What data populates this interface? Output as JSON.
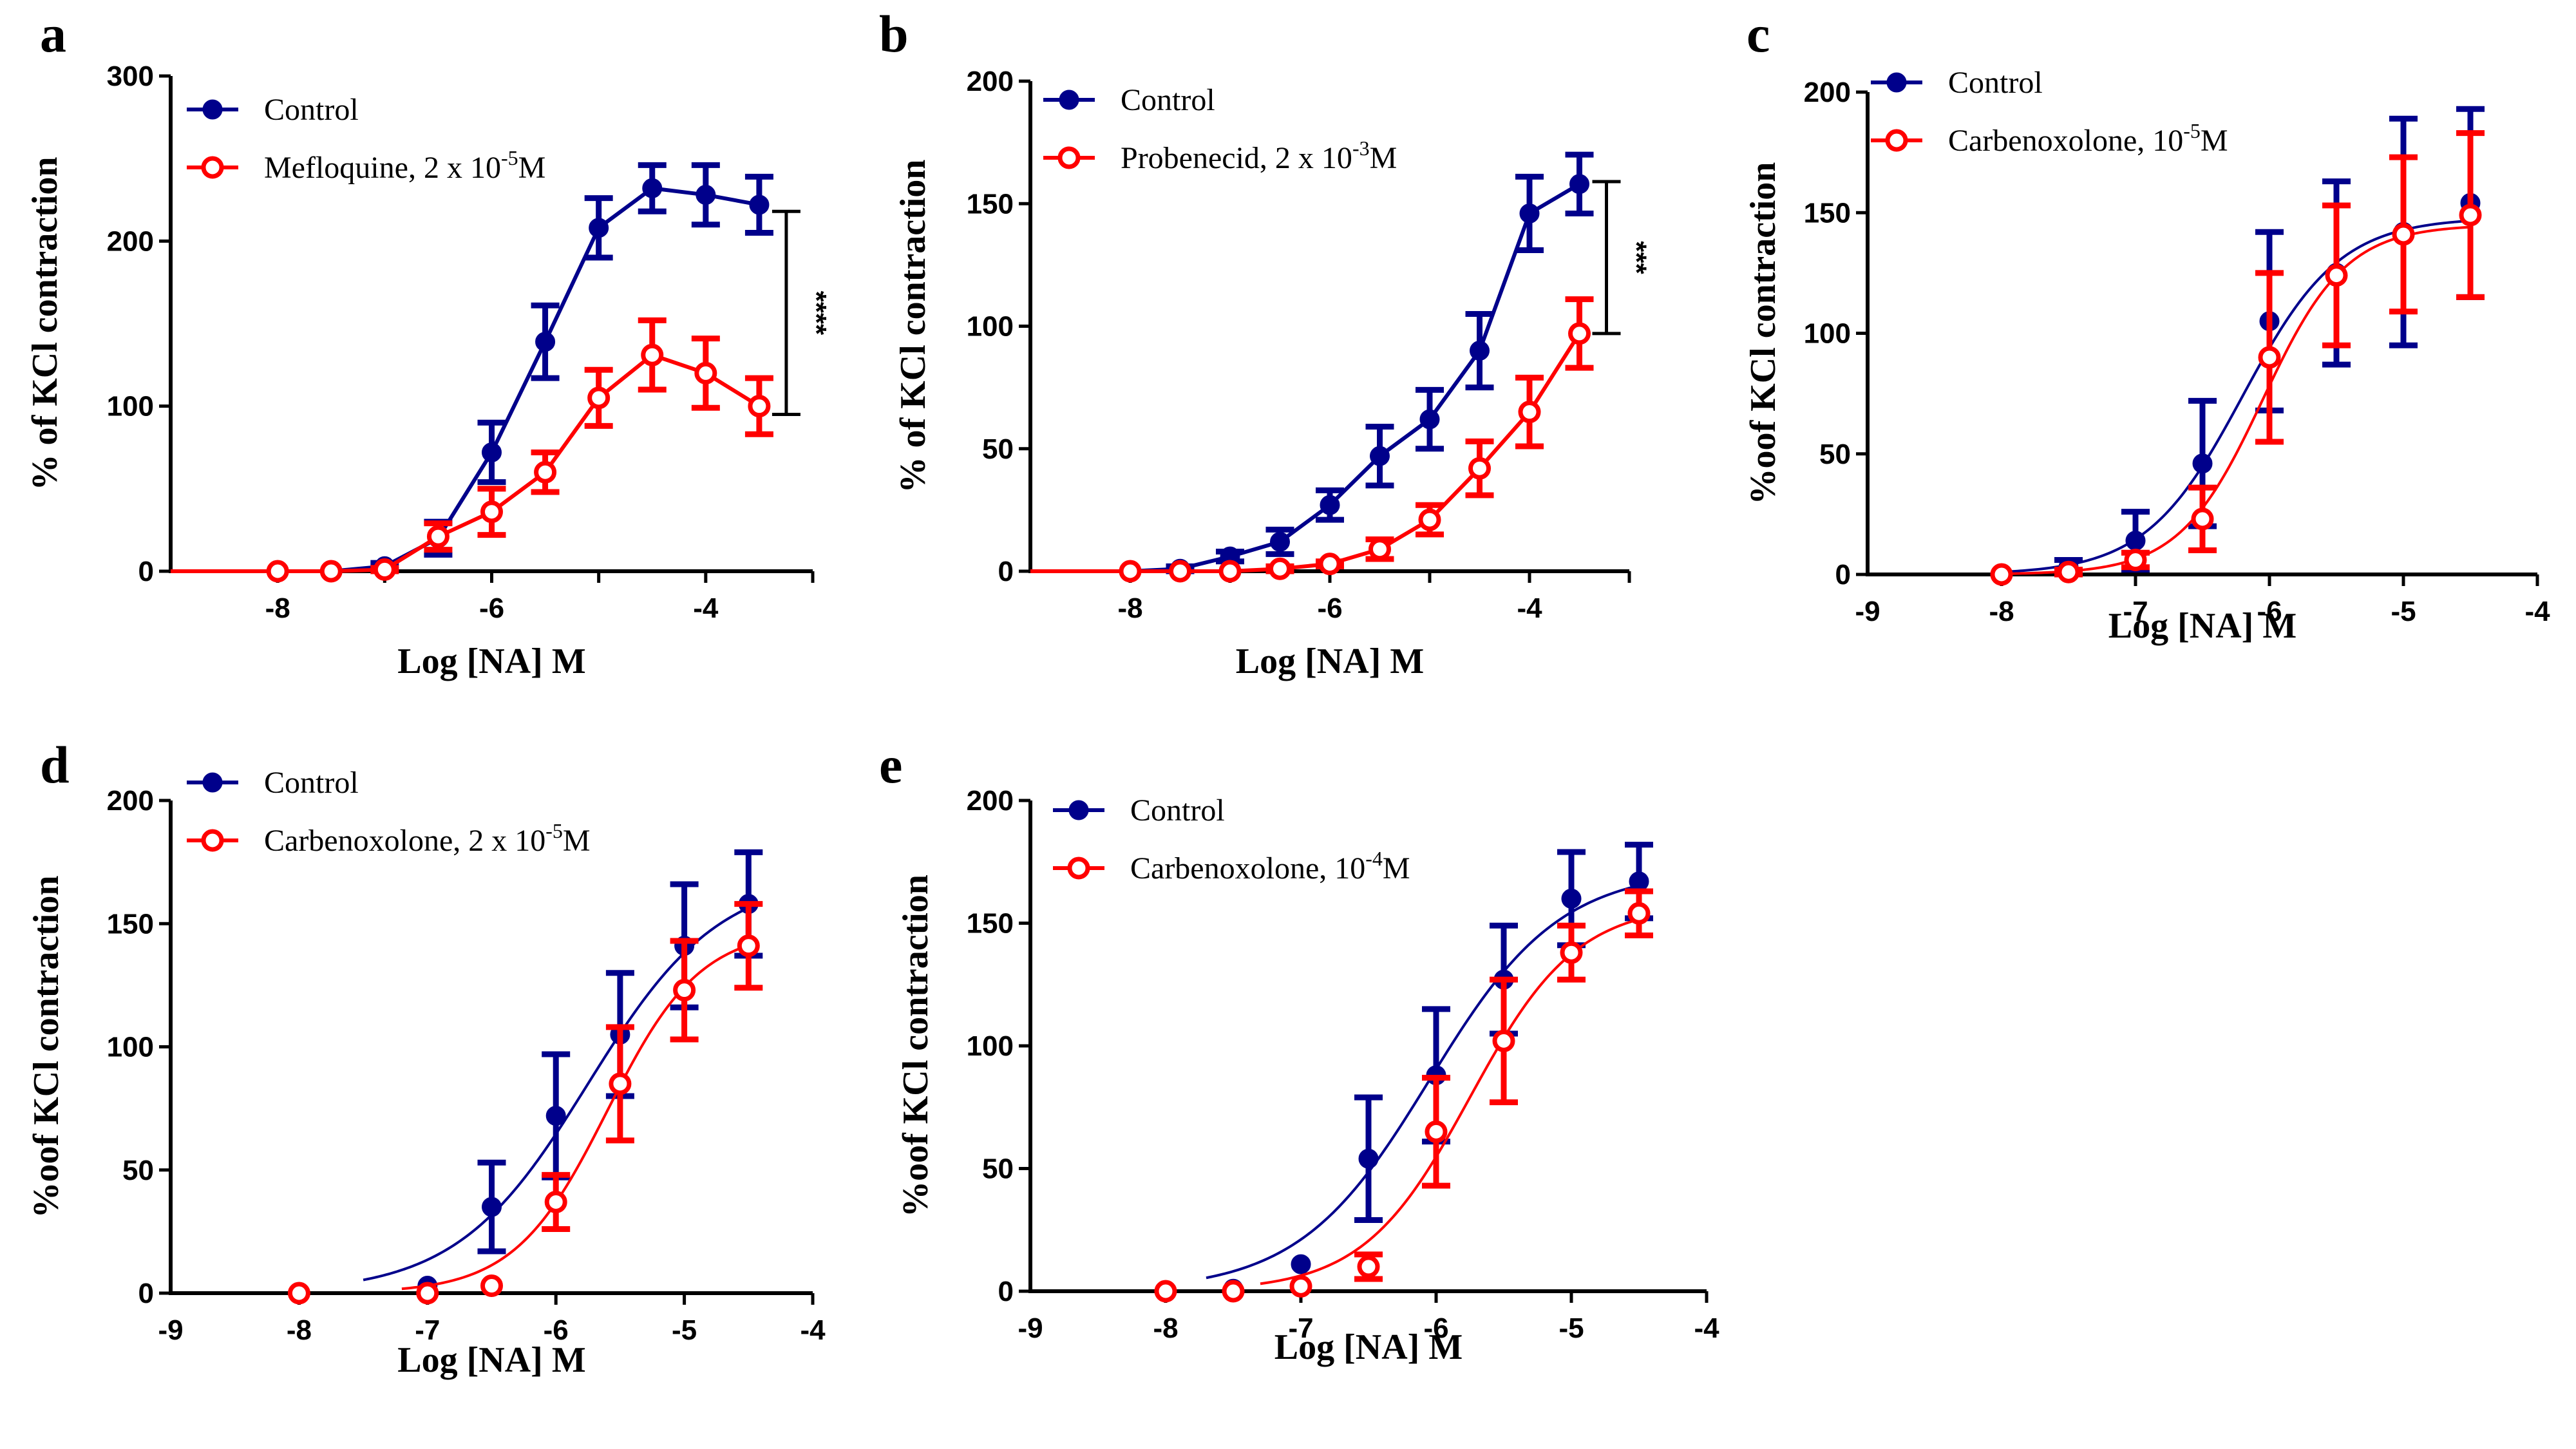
{
  "figure": {
    "colors": {
      "control": "#00008B",
      "treatment": "#FF0000",
      "axis": "#000000"
    }
  },
  "chart_data": [
    {
      "panel": "a",
      "type": "line",
      "title": "",
      "xlabel": "Log [NA] M",
      "ylabel": "% of KCl contraction",
      "xlim": [
        -9,
        -3
      ],
      "ylim": [
        0,
        300
      ],
      "xticks": [
        -9,
        -8,
        -7,
        -6,
        -5,
        -4,
        -3
      ],
      "xtick_labels": [
        "",
        "-8",
        "",
        "-6",
        "",
        "-4",
        ""
      ],
      "yticks": [
        0,
        100,
        200,
        300
      ],
      "ytick_labels": [
        "0",
        "100",
        "200",
        "300"
      ],
      "legend": "top-left",
      "fit": "connected",
      "significance": {
        "label": "****",
        "x": -3.5,
        "y_low": 95,
        "y_high": 218
      },
      "series": [
        {
          "name": "Control",
          "marker": "filled-circle",
          "color": "#00008B",
          "x": [
            -8,
            -7.5,
            -7,
            -6.5,
            -6,
            -5.5,
            -5,
            -4.5,
            -4,
            -3.5
          ],
          "y": [
            0,
            0,
            3,
            20,
            72,
            139,
            208,
            232,
            228,
            222
          ],
          "err": [
            0,
            0,
            2,
            10,
            18,
            22,
            18,
            14,
            18,
            17
          ]
        },
        {
          "name": "Mefloquine, 2 x 10^-5M",
          "marker": "open-circle",
          "color": "#FF0000",
          "x": [
            -8,
            -7.5,
            -7,
            -6.5,
            -6,
            -5.5,
            -5,
            -4.5,
            -4,
            -3.5
          ],
          "y": [
            0,
            0,
            1,
            21,
            36,
            60,
            105,
            131,
            120,
            100
          ],
          "err": [
            0,
            0,
            1,
            8,
            14,
            12,
            17,
            21,
            21,
            17
          ]
        }
      ]
    },
    {
      "panel": "b",
      "type": "line",
      "title": "",
      "xlabel": "Log [NA] M",
      "ylabel": "% of KCl contraction",
      "xlim": [
        -9,
        -3
      ],
      "ylim": [
        0,
        200
      ],
      "xticks": [
        -9,
        -8,
        -7,
        -6,
        -5,
        -4,
        -3
      ],
      "xtick_labels": [
        "",
        "-8",
        "",
        "-6",
        "",
        "-4",
        ""
      ],
      "yticks": [
        0,
        50,
        100,
        150,
        200
      ],
      "ytick_labels": [
        "0",
        "50",
        "100",
        "150",
        "200"
      ],
      "legend": "top-left",
      "fit": "connected",
      "significance": {
        "label": "***",
        "x": -3.5,
        "y_low": 97,
        "y_high": 159
      },
      "series": [
        {
          "name": "Control",
          "marker": "filled-circle",
          "color": "#00008B",
          "x": [
            -8,
            -7.5,
            -7,
            -6.5,
            -6,
            -5.5,
            -5,
            -4.5,
            -4,
            -3.5
          ],
          "y": [
            0,
            1,
            6,
            12,
            27,
            47,
            62,
            90,
            146,
            158
          ],
          "err": [
            0,
            1,
            2,
            5,
            6,
            12,
            12,
            15,
            15,
            12
          ]
        },
        {
          "name": "Probenecid, 2 x 10^-3M",
          "marker": "open-circle",
          "color": "#FF0000",
          "x": [
            -8,
            -7.5,
            -7,
            -6.5,
            -6,
            -5.5,
            -5,
            -4.5,
            -4,
            -3.5
          ],
          "y": [
            0,
            0,
            0,
            1,
            3,
            9,
            21,
            42,
            65,
            97
          ],
          "err": [
            0,
            0,
            0,
            1,
            1,
            4,
            6,
            11,
            14,
            14
          ]
        }
      ]
    },
    {
      "panel": "c",
      "type": "line",
      "title": "",
      "xlabel": "Log [NA] M",
      "ylabel": "%oof KCl contraction",
      "xlim": [
        -9,
        -4
      ],
      "ylim": [
        0,
        200
      ],
      "xticks": [
        -9,
        -8,
        -7,
        -6,
        -5,
        -4
      ],
      "xtick_labels": [
        "-9",
        "-8",
        "-7",
        "-6",
        "-5",
        "-4"
      ],
      "yticks": [
        0,
        50,
        100,
        150,
        200
      ],
      "ytick_labels": [
        "0",
        "50",
        "100",
        "150",
        "200"
      ],
      "legend": "top-left",
      "fit": "sigmoid",
      "series": [
        {
          "name": "Control",
          "marker": "filled-circle",
          "color": "#00008B",
          "x": [
            -8,
            -7.5,
            -7,
            -6.5,
            -6,
            -5.5,
            -5,
            -4.5
          ],
          "y": [
            0,
            3,
            14,
            46,
            105,
            125,
            142,
            154
          ],
          "err": [
            0,
            3,
            12,
            26,
            37,
            38,
            47,
            39
          ],
          "fit_params": {
            "bottom": 0,
            "top": 148,
            "logEC50": -6.2,
            "hill": 1.2
          }
        },
        {
          "name": "Carbenoxolone, 10^-5M",
          "marker": "open-circle",
          "color": "#FF0000",
          "x": [
            -8,
            -7.5,
            -7,
            -6.5,
            -6,
            -5.5,
            -5,
            -4.5
          ],
          "y": [
            0,
            1,
            6,
            23,
            90,
            124,
            141,
            149
          ],
          "err": [
            0,
            1,
            3,
            13,
            35,
            29,
            32,
            34
          ],
          "fit_params": {
            "bottom": 0,
            "top": 145,
            "logEC50": -6.05,
            "hill": 1.4
          }
        }
      ]
    },
    {
      "panel": "d",
      "type": "line",
      "title": "",
      "xlabel": "Log [NA] M",
      "ylabel": "%oof KCl contraction",
      "xlim": [
        -9,
        -4
      ],
      "ylim": [
        0,
        200
      ],
      "xticks": [
        -9,
        -8,
        -7,
        -6,
        -5,
        -4
      ],
      "xtick_labels": [
        "-9",
        "-8",
        "-7",
        "-6",
        "-5",
        "-4"
      ],
      "yticks": [
        0,
        50,
        100,
        150,
        200
      ],
      "ytick_labels": [
        "0",
        "50",
        "100",
        "150",
        "200"
      ],
      "legend": "top-left",
      "fit": "sigmoid",
      "series": [
        {
          "name": "Control",
          "marker": "filled-circle",
          "color": "#00008B",
          "x": [
            -7,
            -6.5,
            -6,
            -5.5,
            -5,
            -4.5
          ],
          "y": [
            3,
            35,
            72,
            105,
            141,
            158
          ],
          "err": [
            0,
            18,
            25,
            25,
            25,
            21
          ],
          "fit_params": {
            "bottom": 0,
            "top": 170,
            "logEC50": -5.75,
            "hill": 0.85,
            "x_start": -7.5
          }
        },
        {
          "name": "Carbenoxolone, 2 x 10^-5M",
          "marker": "open-circle",
          "color": "#FF0000",
          "x": [
            -8,
            -7,
            -6.5,
            -6,
            -5.5,
            -5,
            -4.5
          ],
          "y": [
            0,
            0,
            3,
            37,
            85,
            123,
            141
          ],
          "err": [
            0,
            0,
            0,
            11,
            23,
            20,
            17
          ],
          "fit_params": {
            "bottom": 0,
            "top": 148,
            "logEC50": -5.6,
            "hill": 1.2,
            "x_start": -7.2
          }
        }
      ]
    },
    {
      "panel": "e",
      "type": "line",
      "title": "",
      "xlabel": "Log [NA] M",
      "ylabel": "%oof KCl contraction",
      "xlim": [
        -9,
        -4
      ],
      "ylim": [
        0,
        200
      ],
      "xticks": [
        -9,
        -8,
        -7,
        -6,
        -5,
        -4
      ],
      "xtick_labels": [
        "-9",
        "-8",
        "-7",
        "-6",
        "-5",
        "-4"
      ],
      "yticks": [
        0,
        50,
        100,
        150,
        200
      ],
      "ytick_labels": [
        "0",
        "50",
        "100",
        "150",
        "200"
      ],
      "legend": "top-left",
      "fit": "sigmoid",
      "series": [
        {
          "name": "Control",
          "marker": "filled-circle",
          "color": "#00008B",
          "x": [
            -8,
            -7.5,
            -7,
            -6.5,
            -6,
            -5.5,
            -5,
            -4.5
          ],
          "y": [
            0,
            1,
            11,
            54,
            88,
            127,
            160,
            167
          ],
          "err": [
            0,
            0,
            0,
            25,
            27,
            22,
            19,
            15
          ],
          "fit_params": {
            "bottom": 0,
            "top": 172,
            "logEC50": -6.05,
            "hill": 0.9,
            "x_start": -7.7
          }
        },
        {
          "name": "Carbenoxolone, 10^-4M",
          "marker": "open-circle",
          "color": "#FF0000",
          "x": [
            -8,
            -7.5,
            -7,
            -6.5,
            -6,
            -5.5,
            -5,
            -4.5
          ],
          "y": [
            0,
            0,
            2,
            10,
            65,
            102,
            138,
            154
          ],
          "err": [
            0,
            0,
            0,
            5,
            22,
            25,
            11,
            9
          ],
          "fit_params": {
            "bottom": 0,
            "top": 158,
            "logEC50": -5.75,
            "hill": 1.1,
            "x_start": -7.3
          }
        }
      ]
    }
  ]
}
